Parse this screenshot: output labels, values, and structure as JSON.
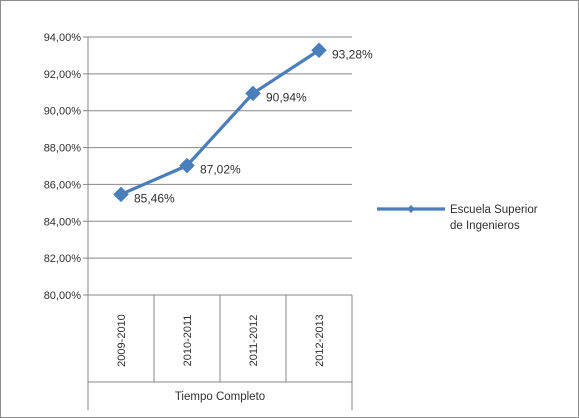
{
  "chart_data": {
    "type": "line",
    "categories": [
      "2009-2010",
      "2010-2011",
      "2011-2012",
      "2012-2013"
    ],
    "category_group": "Tiempo Completo",
    "series": [
      {
        "name_lines": [
          "Escuela Superior",
          "de Ingenieros"
        ],
        "values": [
          85.46,
          87.02,
          90.94,
          93.28
        ],
        "value_labels": [
          "85,46%",
          "87,02%",
          "90,94%",
          "93,28%"
        ],
        "color": "#4a7ebb",
        "marker": "diamond"
      }
    ],
    "ylim": [
      80,
      94
    ],
    "y_ticks": [
      80,
      82,
      84,
      86,
      88,
      90,
      92,
      94
    ],
    "y_tick_labels": [
      "80,00%",
      "82,00%",
      "84,00%",
      "86,00%",
      "88,00%",
      "90,00%",
      "92,00%",
      "94,00%"
    ],
    "grid": "horizontal major gridlines",
    "legend_position": "right",
    "colors": {
      "series": "#4a7ebb",
      "gridline": "#878787",
      "axis": "#878787",
      "text": "#303030"
    }
  }
}
